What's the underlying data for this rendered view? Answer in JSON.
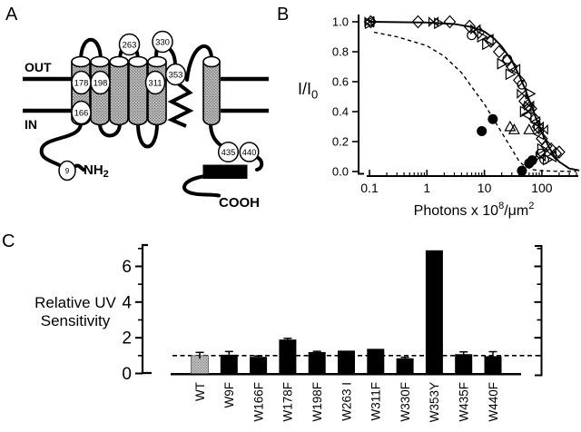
{
  "figure_title": "Tryptophan mutant UV-sensitivity figure",
  "panel_a": {
    "label": "A",
    "out_label": "OUT",
    "in_label": "IN",
    "nh2_label": {
      "base": "NH",
      "sub": "2"
    },
    "cooh_label": "COOH",
    "residues": [
      "9",
      "166",
      "178",
      "198",
      "263",
      "311",
      "330",
      "353",
      "435",
      "440"
    ]
  },
  "chart_data": [
    {
      "panel_label": "B",
      "type": "scatter",
      "xscale": "log",
      "xlim": [
        0.1,
        500
      ],
      "ylim": [
        0.0,
        1.0
      ],
      "grid": false,
      "xlabel_parts": {
        "base": "Photons x 10",
        "sup": "8",
        "unit": "/μm",
        "unit_sup": "2"
      },
      "ylabel_parts": {
        "base": "I/I",
        "sub": "0"
      },
      "xticks": [
        {
          "v": 0.1,
          "label": "0.1"
        },
        {
          "v": 1,
          "label": "1"
        },
        {
          "v": 10,
          "label": "10"
        },
        {
          "v": 100,
          "label": "100"
        }
      ],
      "yticks": [
        {
          "v": 0.0,
          "label": "0.0"
        },
        {
          "v": 0.2,
          "label": "0.2"
        },
        {
          "v": 0.4,
          "label": "0.4"
        },
        {
          "v": 0.6,
          "label": "0.6"
        },
        {
          "v": 0.8,
          "label": "0.8"
        },
        {
          "v": 1.0,
          "label": "1.0"
        }
      ],
      "series": [
        {
          "name": "diamond-open",
          "marker": "diamond",
          "points": [
            [
              0.105,
              1.0
            ],
            [
              0.7,
              1.0
            ],
            [
              2.5,
              1.0
            ],
            [
              5.5,
              0.97
            ],
            [
              8,
              0.93
            ],
            [
              13,
              0.87
            ],
            [
              18,
              0.8
            ],
            [
              25,
              0.74
            ],
            [
              30,
              0.7
            ],
            [
              40,
              0.61
            ],
            [
              50,
              0.47
            ],
            [
              57,
              0.44
            ],
            [
              65,
              0.42
            ],
            [
              75,
              0.35
            ],
            [
              85,
              0.3
            ],
            [
              100,
              0.22
            ],
            [
              120,
              0.17
            ],
            [
              145,
              0.15
            ],
            [
              175,
              0.12
            ],
            [
              200,
              0.13
            ]
          ]
        },
        {
          "name": "bowtie-open",
          "marker": "bowtie",
          "points": [
            [
              0.1,
              1.0
            ],
            [
              1.3,
              1.0
            ],
            [
              7,
              0.95
            ],
            [
              45,
              0.52
            ],
            [
              60,
              0.44
            ],
            [
              88,
              0.3
            ],
            [
              105,
              0.28
            ],
            [
              95,
              0.1
            ]
          ]
        },
        {
          "name": "triangle-right-open",
          "marker": "triangle-right",
          "points": [
            [
              0.1,
              0.99
            ],
            [
              1.6,
              0.99
            ],
            [
              9,
              0.9
            ],
            [
              11,
              0.85
            ],
            [
              20,
              0.72
            ],
            [
              28,
              0.65
            ],
            [
              62,
              0.52
            ],
            [
              50,
              0.4
            ],
            [
              100,
              0.15
            ],
            [
              125,
              0.08
            ]
          ]
        },
        {
          "name": "triangle-left-open",
          "marker": "triangle-left",
          "points": [
            [
              0.1,
              1.0
            ],
            [
              12,
              0.88
            ],
            [
              35,
              0.68
            ],
            [
              55,
              0.38
            ],
            [
              78,
              0.33
            ],
            [
              90,
              0.25
            ],
            [
              150,
              0.1
            ]
          ]
        },
        {
          "name": "circle-open",
          "marker": "circle",
          "points": [
            [
              6,
              0.91
            ],
            [
              25,
              0.75
            ],
            [
              45,
              0.58
            ],
            [
              95,
              0.12
            ],
            [
              110,
              0.08
            ]
          ]
        },
        {
          "name": "triangle-up-open",
          "marker": "triangle-up",
          "points": [
            [
              28,
              0.3
            ],
            [
              33,
              0.28
            ],
            [
              60,
              0.28
            ]
          ]
        },
        {
          "name": "filled-circle",
          "marker": "circle-filled",
          "points": [
            [
              9,
              0.27
            ],
            [
              14,
              0.35
            ],
            [
              45,
              0.005
            ],
            [
              60,
              0.055
            ],
            [
              68,
              0.075
            ]
          ]
        }
      ],
      "curves": [
        {
          "name": "wt-fit",
          "style": "solid",
          "points": [
            [
              0.1,
              1.0
            ],
            [
              1,
              0.995
            ],
            [
              3,
              0.985
            ],
            [
              6,
              0.965
            ],
            [
              10,
              0.935
            ],
            [
              15,
              0.885
            ],
            [
              20,
              0.835
            ],
            [
              30,
              0.74
            ],
            [
              40,
              0.645
            ],
            [
              50,
              0.56
            ],
            [
              60,
              0.48
            ],
            [
              80,
              0.35
            ],
            [
              100,
              0.26
            ],
            [
              130,
              0.17
            ],
            [
              160,
              0.11
            ],
            [
              200,
              0.065
            ],
            [
              300,
              0.02
            ],
            [
              450,
              0.007
            ]
          ]
        },
        {
          "name": "w353y-fit",
          "style": "dashed",
          "points": [
            [
              0.12,
              0.93
            ],
            [
              0.3,
              0.9
            ],
            [
              1,
              0.84
            ],
            [
              2,
              0.77
            ],
            [
              4,
              0.66
            ],
            [
              7,
              0.53
            ],
            [
              10,
              0.45
            ],
            [
              15,
              0.34
            ],
            [
              20,
              0.26
            ],
            [
              30,
              0.15
            ],
            [
              40,
              0.07
            ],
            [
              50,
              0.035
            ],
            [
              70,
              0.012
            ],
            [
              100,
              0.005
            ],
            [
              200,
              0.002
            ],
            [
              400,
              0.001
            ]
          ]
        }
      ]
    },
    {
      "panel_label": "C",
      "type": "bar",
      "ylabel_lines": [
        "Relative UV",
        "Sensitivity"
      ],
      "categories": [
        "WT",
        "W9F",
        "W166F",
        "W178F",
        "W198F",
        "W263 I",
        "W311F",
        "W330F",
        "W353Y",
        "W435F",
        "W440F"
      ],
      "values": [
        1.0,
        1.05,
        0.93,
        1.9,
        1.2,
        1.28,
        1.38,
        0.85,
        6.9,
        1.08,
        0.97
      ],
      "errors": [
        0.18,
        0.18,
        0.05,
        0.07,
        0.04,
        0,
        0,
        0.06,
        0,
        0.13,
        0.25
      ],
      "wt_index": 0,
      "ylim": [
        0,
        7.2
      ],
      "yticks": [
        {
          "v": 0,
          "label": "0"
        },
        {
          "v": 2,
          "label": "2"
        },
        {
          "v": 4,
          "label": "4"
        },
        {
          "v": 6,
          "label": "6"
        }
      ],
      "minor_yticks": [
        1,
        3,
        5,
        7
      ],
      "reference_value": 1,
      "colors": {
        "wt_bar": "#c8c8c8",
        "mutant_bar": "#000000",
        "axis": "#000000"
      }
    }
  ]
}
